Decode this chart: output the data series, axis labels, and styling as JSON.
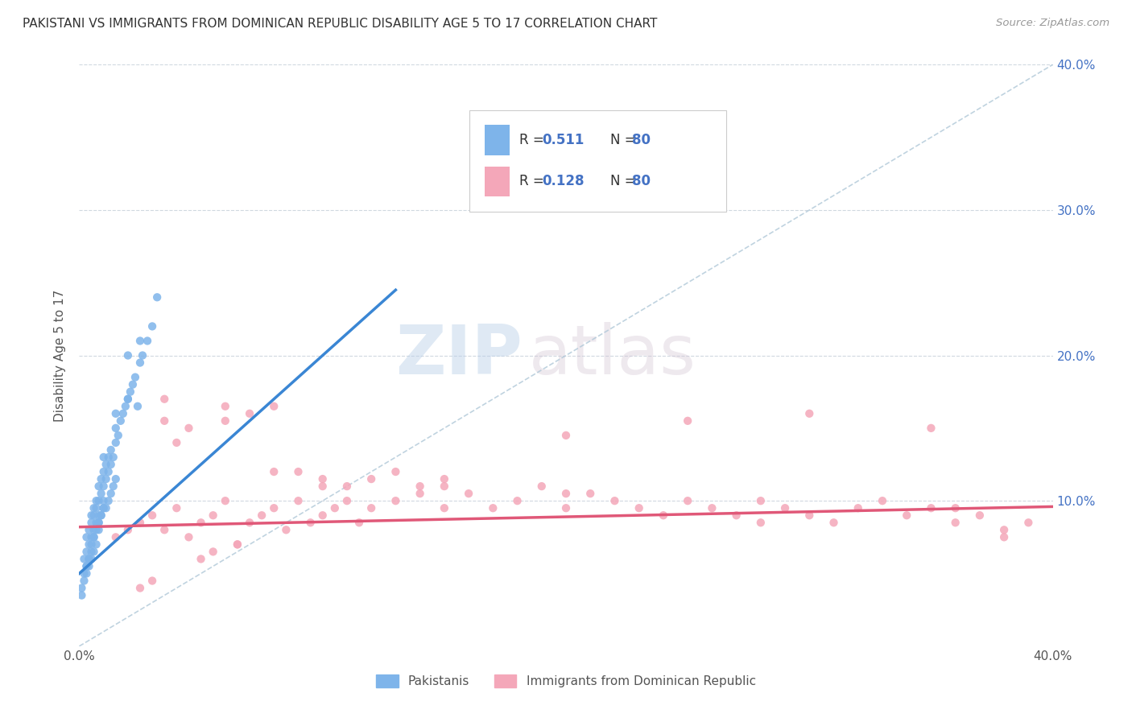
{
  "title": "PAKISTANI VS IMMIGRANTS FROM DOMINICAN REPUBLIC DISABILITY AGE 5 TO 17 CORRELATION CHART",
  "source": "Source: ZipAtlas.com",
  "ylabel": "Disability Age 5 to 17",
  "x_min": 0.0,
  "x_max": 0.4,
  "y_min": 0.0,
  "y_max": 0.4,
  "pakistani_color": "#7eb4ea",
  "dominican_color": "#f4a7b9",
  "pakistani_R": 0.511,
  "pakistani_N": 80,
  "dominican_R": 0.128,
  "dominican_N": 80,
  "regression_line_color_pakistani": "#3a86d4",
  "regression_line_color_dominican": "#e05878",
  "diagonal_line_color": "#b0c8d8",
  "watermark_zip": "ZIP",
  "watermark_atlas": "atlas",
  "legend_label_1": "Pakistanis",
  "legend_label_2": "Immigrants from Dominican Republic",
  "pak_x": [
    0.001,
    0.002,
    0.002,
    0.003,
    0.003,
    0.003,
    0.004,
    0.004,
    0.004,
    0.005,
    0.005,
    0.005,
    0.005,
    0.006,
    0.006,
    0.006,
    0.007,
    0.007,
    0.007,
    0.008,
    0.008,
    0.008,
    0.009,
    0.009,
    0.01,
    0.01,
    0.01,
    0.011,
    0.011,
    0.012,
    0.012,
    0.013,
    0.013,
    0.014,
    0.015,
    0.015,
    0.016,
    0.017,
    0.018,
    0.019,
    0.02,
    0.021,
    0.022,
    0.023,
    0.024,
    0.025,
    0.026,
    0.028,
    0.03,
    0.032,
    0.001,
    0.002,
    0.003,
    0.004,
    0.005,
    0.006,
    0.006,
    0.007,
    0.008,
    0.008,
    0.009,
    0.01,
    0.01,
    0.011,
    0.012,
    0.013,
    0.014,
    0.015,
    0.02,
    0.025,
    0.003,
    0.004,
    0.005,
    0.006,
    0.007,
    0.008,
    0.009,
    0.01,
    0.015,
    0.02
  ],
  "pak_y": [
    0.04,
    0.05,
    0.06,
    0.055,
    0.065,
    0.075,
    0.06,
    0.07,
    0.08,
    0.065,
    0.075,
    0.085,
    0.09,
    0.08,
    0.09,
    0.095,
    0.085,
    0.095,
    0.1,
    0.09,
    0.1,
    0.11,
    0.105,
    0.115,
    0.11,
    0.12,
    0.13,
    0.115,
    0.125,
    0.12,
    0.13,
    0.125,
    0.135,
    0.13,
    0.14,
    0.15,
    0.145,
    0.155,
    0.16,
    0.165,
    0.17,
    0.175,
    0.18,
    0.185,
    0.165,
    0.195,
    0.2,
    0.21,
    0.22,
    0.24,
    0.035,
    0.045,
    0.05,
    0.055,
    0.06,
    0.065,
    0.075,
    0.07,
    0.08,
    0.085,
    0.09,
    0.095,
    0.1,
    0.095,
    0.1,
    0.105,
    0.11,
    0.115,
    0.2,
    0.21,
    0.055,
    0.06,
    0.07,
    0.075,
    0.08,
    0.085,
    0.09,
    0.095,
    0.16,
    0.17
  ],
  "dom_x": [
    0.015,
    0.02,
    0.025,
    0.03,
    0.035,
    0.04,
    0.045,
    0.05,
    0.055,
    0.06,
    0.065,
    0.07,
    0.075,
    0.08,
    0.085,
    0.09,
    0.095,
    0.1,
    0.105,
    0.11,
    0.115,
    0.12,
    0.13,
    0.14,
    0.15,
    0.16,
    0.17,
    0.18,
    0.19,
    0.2,
    0.21,
    0.22,
    0.23,
    0.24,
    0.25,
    0.26,
    0.27,
    0.28,
    0.29,
    0.3,
    0.31,
    0.32,
    0.33,
    0.34,
    0.35,
    0.36,
    0.37,
    0.38,
    0.39,
    0.035,
    0.04,
    0.045,
    0.05,
    0.055,
    0.06,
    0.065,
    0.07,
    0.08,
    0.09,
    0.1,
    0.11,
    0.12,
    0.13,
    0.14,
    0.15,
    0.2,
    0.25,
    0.3,
    0.35,
    0.38,
    0.025,
    0.03,
    0.035,
    0.06,
    0.08,
    0.1,
    0.15,
    0.2,
    0.28,
    0.36
  ],
  "dom_y": [
    0.075,
    0.08,
    0.085,
    0.09,
    0.08,
    0.095,
    0.075,
    0.085,
    0.09,
    0.1,
    0.07,
    0.085,
    0.09,
    0.095,
    0.08,
    0.1,
    0.085,
    0.09,
    0.095,
    0.1,
    0.085,
    0.095,
    0.1,
    0.105,
    0.11,
    0.105,
    0.095,
    0.1,
    0.11,
    0.095,
    0.105,
    0.1,
    0.095,
    0.09,
    0.1,
    0.095,
    0.09,
    0.085,
    0.095,
    0.09,
    0.085,
    0.095,
    0.1,
    0.09,
    0.095,
    0.085,
    0.09,
    0.08,
    0.085,
    0.155,
    0.14,
    0.15,
    0.06,
    0.065,
    0.155,
    0.07,
    0.16,
    0.165,
    0.12,
    0.115,
    0.11,
    0.115,
    0.12,
    0.11,
    0.115,
    0.145,
    0.155,
    0.16,
    0.15,
    0.075,
    0.04,
    0.045,
    0.17,
    0.165,
    0.12,
    0.11,
    0.095,
    0.105,
    0.1,
    0.095
  ],
  "pak_line_x0": 0.0,
  "pak_line_x1": 0.13,
  "pak_line_y0": 0.05,
  "pak_line_y1": 0.245,
  "dom_line_x0": 0.0,
  "dom_line_x1": 0.4,
  "dom_line_y0": 0.082,
  "dom_line_y1": 0.096
}
